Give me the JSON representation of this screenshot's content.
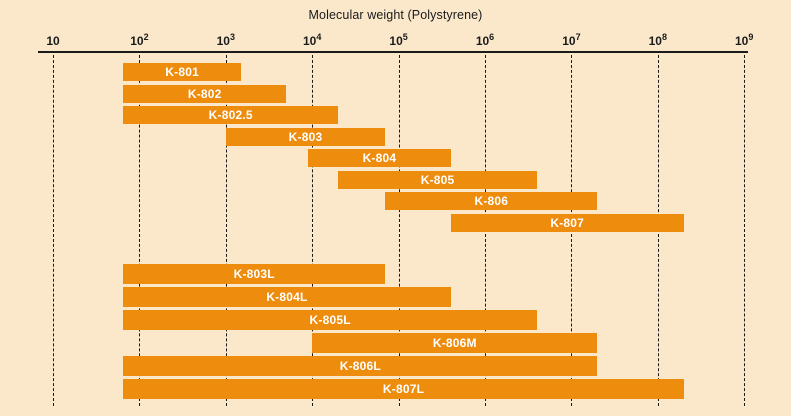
{
  "chart_data": {
    "type": "bar",
    "orientation": "horizontal-range",
    "title": "Molecular weight (Polystyrene)",
    "x_axis": {
      "scale": "log10",
      "min": 10,
      "max": 1000000000,
      "ticks": [
        {
          "value": 10,
          "base": "10",
          "exp": ""
        },
        {
          "value": 100,
          "base": "10",
          "exp": "2"
        },
        {
          "value": 1000,
          "base": "10",
          "exp": "3"
        },
        {
          "value": 10000,
          "base": "10",
          "exp": "4"
        },
        {
          "value": 100000,
          "base": "10",
          "exp": "5"
        },
        {
          "value": 1000000,
          "base": "10",
          "exp": "6"
        },
        {
          "value": 10000000,
          "base": "10",
          "exp": "7"
        },
        {
          "value": 100000000,
          "base": "10",
          "exp": "8"
        },
        {
          "value": 1000000000,
          "base": "10",
          "exp": "9"
        }
      ],
      "gridlines": "dashed"
    },
    "legend": "none",
    "colors": {
      "background": "#fbe8cb",
      "bar": "#ee8c0e",
      "bar_label": "#ffffff",
      "axis": "#1a1a1a",
      "text": "#1a1a1a"
    },
    "groups": [
      {
        "name": "standard-columns",
        "bars": [
          {
            "label": "K-801",
            "mw_min": 65,
            "mw_max": 1500
          },
          {
            "label": "K-802",
            "mw_min": 65,
            "mw_max": 5000
          },
          {
            "label": "K-802.5",
            "mw_min": 65,
            "mw_max": 20000
          },
          {
            "label": "K-803",
            "mw_min": 1000,
            "mw_max": 70000
          },
          {
            "label": "K-804",
            "mw_min": 9000,
            "mw_max": 400000
          },
          {
            "label": "K-805",
            "mw_min": 20000,
            "mw_max": 4000000
          },
          {
            "label": "K-806",
            "mw_min": 70000,
            "mw_max": 20000000
          },
          {
            "label": "K-807",
            "mw_min": 400000,
            "mw_max": 200000000
          }
        ]
      },
      {
        "name": "linear-columns",
        "bars": [
          {
            "label": "K-803L",
            "mw_min": 65,
            "mw_max": 70000
          },
          {
            "label": "K-804L",
            "mw_min": 65,
            "mw_max": 400000
          },
          {
            "label": "K-805L",
            "mw_min": 65,
            "mw_max": 4000000
          },
          {
            "label": "K-806M",
            "mw_min": 10000,
            "mw_max": 20000000
          },
          {
            "label": "K-806L",
            "mw_min": 65,
            "mw_max": 20000000
          },
          {
            "label": "K-807L",
            "mw_min": 65,
            "mw_max": 200000000
          }
        ]
      }
    ]
  }
}
